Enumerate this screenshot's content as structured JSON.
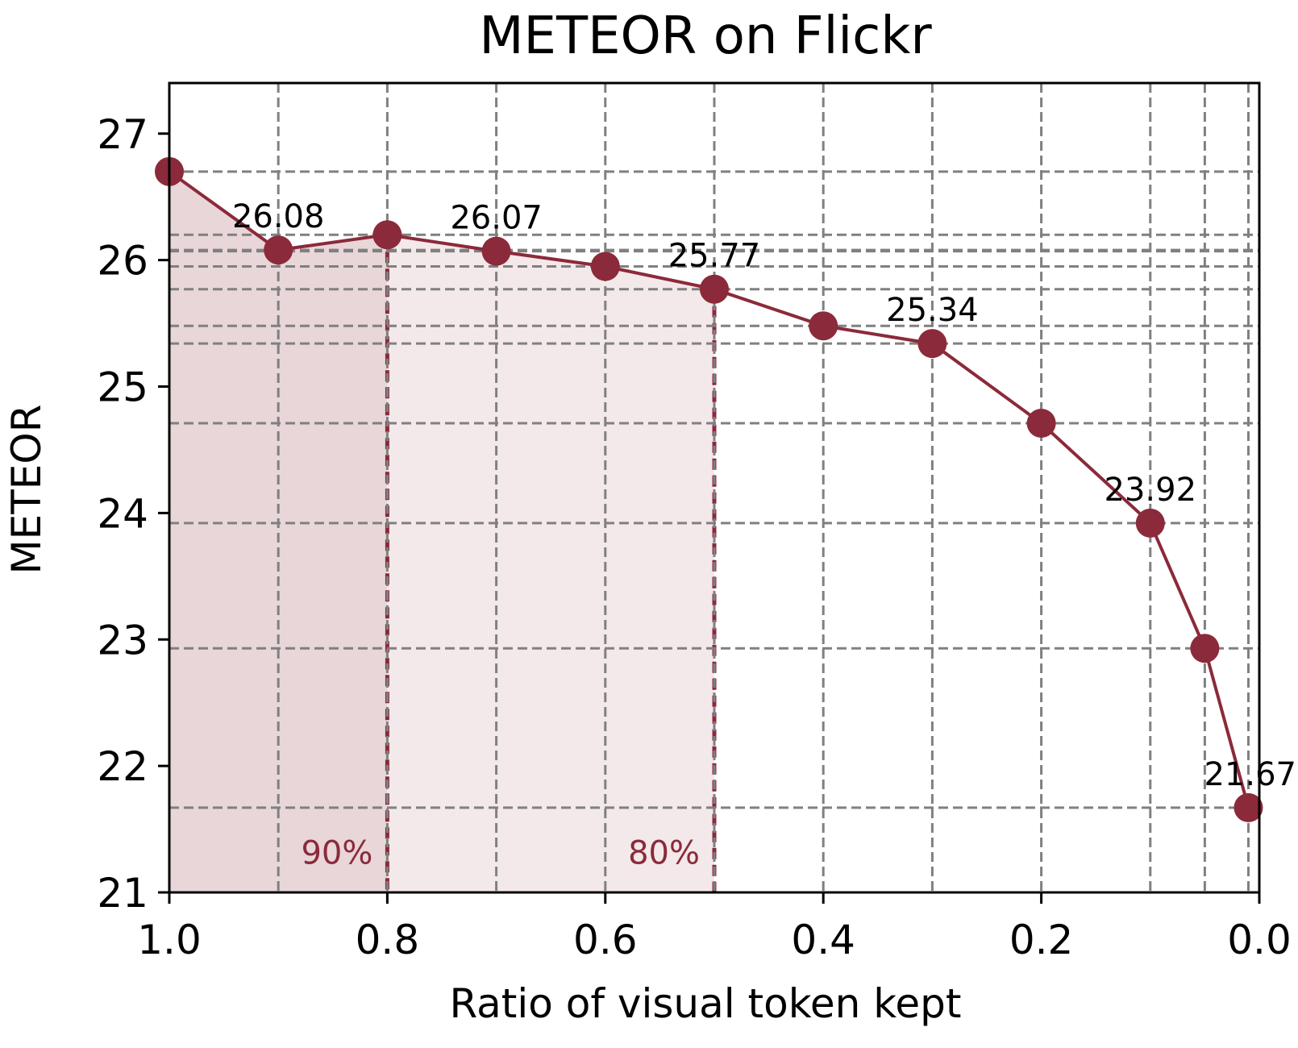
{
  "chart_data": {
    "type": "line",
    "title": "METEOR on Flickr",
    "xlabel": "Ratio of visual token kept",
    "ylabel": "METEOR",
    "xlim": [
      1.0,
      0.0
    ],
    "ylim": [
      21,
      27.4
    ],
    "x_reversed": true,
    "grid": true,
    "x_ticks": [
      1.0,
      0.8,
      0.6,
      0.4,
      0.2,
      0.0
    ],
    "x_tick_labels": [
      "1.0",
      "0.8",
      "0.6",
      "0.4",
      "0.2",
      "0.0"
    ],
    "y_ticks": [
      21,
      22,
      23,
      24,
      25,
      26,
      27
    ],
    "y_tick_labels": [
      "21",
      "22",
      "23",
      "24",
      "25",
      "26",
      "27"
    ],
    "series": [
      {
        "color": "#8b2a3a",
        "x": [
          1.0,
          0.9,
          0.8,
          0.7,
          0.6,
          0.5,
          0.4,
          0.3,
          0.2,
          0.1,
          0.05,
          0.01
        ],
        "y": [
          26.7,
          26.08,
          26.2,
          26.07,
          25.95,
          25.77,
          25.48,
          25.34,
          24.71,
          23.92,
          22.93,
          21.67
        ]
      }
    ],
    "data_labels": [
      {
        "x": 0.9,
        "y": 26.08,
        "text": "26.08"
      },
      {
        "x": 0.7,
        "y": 26.07,
        "text": "26.07"
      },
      {
        "x": 0.5,
        "y": 25.77,
        "text": "25.77"
      },
      {
        "x": 0.3,
        "y": 25.34,
        "text": "25.34"
      },
      {
        "x": 0.1,
        "y": 23.92,
        "text": "23.92"
      },
      {
        "x": 0.01,
        "y": 21.67,
        "text": "21.67"
      }
    ],
    "regions": [
      {
        "x_from": 1.0,
        "x_to": 0.8,
        "label": "90%",
        "fill": "#e8d6d9"
      },
      {
        "x_from": 0.8,
        "x_to": 0.5,
        "label": "80%",
        "fill": "#f3e8ea"
      }
    ],
    "colors": {
      "line": "#8b2a3a",
      "grid": "#808080",
      "region_text": "#8b2a3a"
    }
  }
}
